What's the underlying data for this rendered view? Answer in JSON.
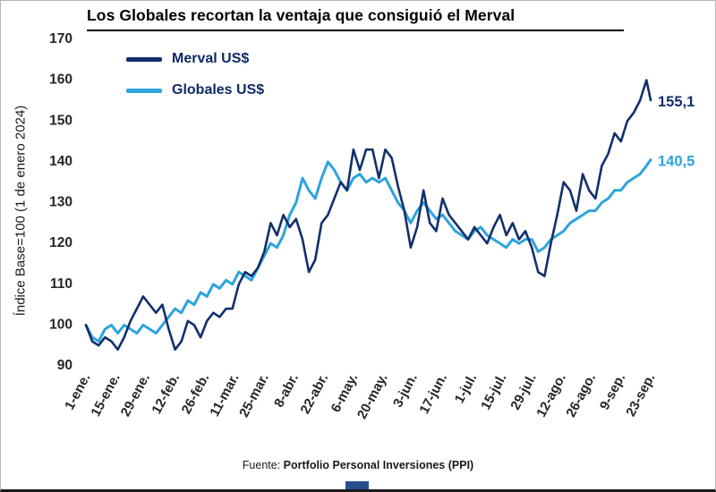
{
  "title": "Los Globales recortan la ventaja que consiguió el Merval",
  "y_axis_label": "Índice Base=100 (1 de enero 2024)",
  "footer": {
    "prefix": "Fuente: ",
    "bold": "Portfolio Personal Inversiones (PPI)"
  },
  "colors": {
    "merval": "#11306b",
    "globales": "#2da4dc",
    "title": "#000000",
    "tick_text": "#262626",
    "footer_bar": "#24508f"
  },
  "legend": [
    {
      "label": "Merval US$",
      "color": "#11306b"
    },
    {
      "label": "Globales US$",
      "color": "#2da4dc"
    }
  ],
  "chart_data": {
    "type": "line",
    "title": "Los Globales recortan la ventaja que consiguió el Merval",
    "xlabel": "",
    "ylabel": "Índice Base=100 (1 de enero 2024)",
    "ylim": [
      90,
      170
    ],
    "yticks": [
      90,
      100,
      110,
      120,
      130,
      140,
      150,
      160,
      170
    ],
    "grid": false,
    "legend_position": "top-left",
    "x_note": "days since 1-ene-2024",
    "x_range": [
      0,
      266
    ],
    "x_tick_days": [
      0,
      14,
      28,
      42,
      56,
      70,
      84,
      98,
      112,
      126,
      140,
      154,
      168,
      182,
      196,
      210,
      224,
      238,
      252,
      266
    ],
    "x_tick_labels": [
      "1-ene.",
      "15-ene.",
      "29-ene.",
      "12-feb.",
      "26-feb.",
      "11-mar.",
      "25-mar.",
      "8-abr.",
      "22-abr.",
      "6-may.",
      "20-may.",
      "3-jun.",
      "17-jun.",
      "1-jul.",
      "15-jul.",
      "29-jul.",
      "12-ago.",
      "26-ago.",
      "9-sep.",
      "23-sep."
    ],
    "x": [
      0,
      3,
      6,
      9,
      12,
      15,
      18,
      21,
      24,
      27,
      30,
      33,
      36,
      39,
      42,
      45,
      48,
      51,
      54,
      57,
      60,
      63,
      66,
      69,
      72,
      75,
      78,
      81,
      84,
      87,
      90,
      93,
      96,
      99,
      102,
      105,
      108,
      111,
      114,
      117,
      120,
      123,
      126,
      129,
      132,
      135,
      138,
      141,
      144,
      147,
      150,
      153,
      156,
      159,
      162,
      165,
      168,
      171,
      174,
      177,
      180,
      183,
      186,
      189,
      192,
      195,
      198,
      201,
      204,
      207,
      210,
      213,
      216,
      219,
      222,
      225,
      228,
      231,
      234,
      237,
      240,
      243,
      246,
      249,
      252,
      255,
      258,
      261,
      264,
      266
    ],
    "series": [
      {
        "name": "Merval US$",
        "color": "#11306b",
        "end_label": "155,1",
        "values": [
          100,
          96,
          95,
          97,
          96,
          94,
          97,
          101,
          104,
          107,
          105,
          103,
          105,
          99,
          94,
          96,
          101,
          100,
          97,
          101,
          103,
          102,
          104,
          104,
          110,
          113,
          112,
          114,
          118,
          125,
          122,
          127,
          124,
          126,
          121,
          113,
          116,
          125,
          127,
          131,
          135,
          133,
          143,
          138,
          143,
          143,
          136,
          143,
          141,
          134,
          128,
          119,
          124,
          133,
          125,
          123,
          131,
          127,
          125,
          123,
          121,
          124,
          122,
          120,
          124,
          127,
          122,
          125,
          121,
          123,
          119,
          113,
          112,
          120,
          127,
          135,
          133,
          128,
          137,
          133,
          131,
          139,
          142,
          147,
          145,
          150,
          152,
          155,
          160,
          155.1
        ]
      },
      {
        "name": "Globales US$",
        "color": "#2da4dc",
        "end_label": "140,5",
        "values": [
          100,
          97,
          96,
          99,
          100,
          98,
          100,
          99,
          98,
          100,
          99,
          98,
          100,
          102,
          104,
          103,
          106,
          105,
          108,
          107,
          110,
          109,
          111,
          110,
          113,
          112,
          111,
          114,
          117,
          120,
          119,
          122,
          127,
          130,
          136,
          133,
          131,
          136,
          140,
          138,
          135,
          133,
          136,
          137,
          135,
          136,
          135,
          136,
          133,
          130,
          128,
          125,
          128,
          130,
          128,
          126,
          127,
          125,
          123,
          122,
          121,
          123,
          124,
          122,
          121,
          120,
          119,
          121,
          120,
          121,
          121,
          118,
          119,
          121,
          122,
          123,
          125,
          126,
          127,
          128,
          128,
          130,
          131,
          133,
          133,
          135,
          136,
          137,
          139,
          140.5
        ]
      }
    ]
  }
}
